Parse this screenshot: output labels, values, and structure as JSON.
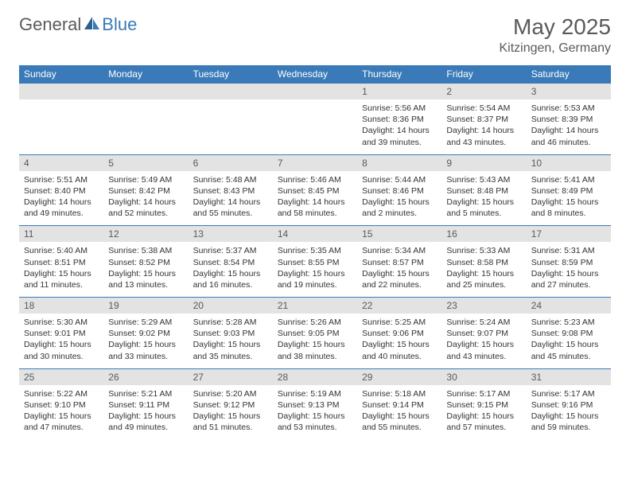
{
  "brand": {
    "word1": "General",
    "word2": "Blue"
  },
  "title": "May 2025",
  "location": "Kitzingen, Germany",
  "colors": {
    "header_bg": "#3a7ab8",
    "header_fg": "#ffffff",
    "daynum_bg": "#e3e3e3",
    "daynum_fg": "#5a5a5a",
    "border": "#3a7ab8",
    "text": "#333333"
  },
  "weekdays": [
    "Sunday",
    "Monday",
    "Tuesday",
    "Wednesday",
    "Thursday",
    "Friday",
    "Saturday"
  ],
  "weeks": [
    {
      "nums": [
        "",
        "",
        "",
        "",
        "1",
        "2",
        "3"
      ],
      "cells": [
        "",
        "",
        "",
        "",
        "Sunrise: 5:56 AM\nSunset: 8:36 PM\nDaylight: 14 hours and 39 minutes.",
        "Sunrise: 5:54 AM\nSunset: 8:37 PM\nDaylight: 14 hours and 43 minutes.",
        "Sunrise: 5:53 AM\nSunset: 8:39 PM\nDaylight: 14 hours and 46 minutes."
      ]
    },
    {
      "nums": [
        "4",
        "5",
        "6",
        "7",
        "8",
        "9",
        "10"
      ],
      "cells": [
        "Sunrise: 5:51 AM\nSunset: 8:40 PM\nDaylight: 14 hours and 49 minutes.",
        "Sunrise: 5:49 AM\nSunset: 8:42 PM\nDaylight: 14 hours and 52 minutes.",
        "Sunrise: 5:48 AM\nSunset: 8:43 PM\nDaylight: 14 hours and 55 minutes.",
        "Sunrise: 5:46 AM\nSunset: 8:45 PM\nDaylight: 14 hours and 58 minutes.",
        "Sunrise: 5:44 AM\nSunset: 8:46 PM\nDaylight: 15 hours and 2 minutes.",
        "Sunrise: 5:43 AM\nSunset: 8:48 PM\nDaylight: 15 hours and 5 minutes.",
        "Sunrise: 5:41 AM\nSunset: 8:49 PM\nDaylight: 15 hours and 8 minutes."
      ]
    },
    {
      "nums": [
        "11",
        "12",
        "13",
        "14",
        "15",
        "16",
        "17"
      ],
      "cells": [
        "Sunrise: 5:40 AM\nSunset: 8:51 PM\nDaylight: 15 hours and 11 minutes.",
        "Sunrise: 5:38 AM\nSunset: 8:52 PM\nDaylight: 15 hours and 13 minutes.",
        "Sunrise: 5:37 AM\nSunset: 8:54 PM\nDaylight: 15 hours and 16 minutes.",
        "Sunrise: 5:35 AM\nSunset: 8:55 PM\nDaylight: 15 hours and 19 minutes.",
        "Sunrise: 5:34 AM\nSunset: 8:57 PM\nDaylight: 15 hours and 22 minutes.",
        "Sunrise: 5:33 AM\nSunset: 8:58 PM\nDaylight: 15 hours and 25 minutes.",
        "Sunrise: 5:31 AM\nSunset: 8:59 PM\nDaylight: 15 hours and 27 minutes."
      ]
    },
    {
      "nums": [
        "18",
        "19",
        "20",
        "21",
        "22",
        "23",
        "24"
      ],
      "cells": [
        "Sunrise: 5:30 AM\nSunset: 9:01 PM\nDaylight: 15 hours and 30 minutes.",
        "Sunrise: 5:29 AM\nSunset: 9:02 PM\nDaylight: 15 hours and 33 minutes.",
        "Sunrise: 5:28 AM\nSunset: 9:03 PM\nDaylight: 15 hours and 35 minutes.",
        "Sunrise: 5:26 AM\nSunset: 9:05 PM\nDaylight: 15 hours and 38 minutes.",
        "Sunrise: 5:25 AM\nSunset: 9:06 PM\nDaylight: 15 hours and 40 minutes.",
        "Sunrise: 5:24 AM\nSunset: 9:07 PM\nDaylight: 15 hours and 43 minutes.",
        "Sunrise: 5:23 AM\nSunset: 9:08 PM\nDaylight: 15 hours and 45 minutes."
      ]
    },
    {
      "nums": [
        "25",
        "26",
        "27",
        "28",
        "29",
        "30",
        "31"
      ],
      "cells": [
        "Sunrise: 5:22 AM\nSunset: 9:10 PM\nDaylight: 15 hours and 47 minutes.",
        "Sunrise: 5:21 AM\nSunset: 9:11 PM\nDaylight: 15 hours and 49 minutes.",
        "Sunrise: 5:20 AM\nSunset: 9:12 PM\nDaylight: 15 hours and 51 minutes.",
        "Sunrise: 5:19 AM\nSunset: 9:13 PM\nDaylight: 15 hours and 53 minutes.",
        "Sunrise: 5:18 AM\nSunset: 9:14 PM\nDaylight: 15 hours and 55 minutes.",
        "Sunrise: 5:17 AM\nSunset: 9:15 PM\nDaylight: 15 hours and 57 minutes.",
        "Sunrise: 5:17 AM\nSunset: 9:16 PM\nDaylight: 15 hours and 59 minutes."
      ]
    }
  ]
}
